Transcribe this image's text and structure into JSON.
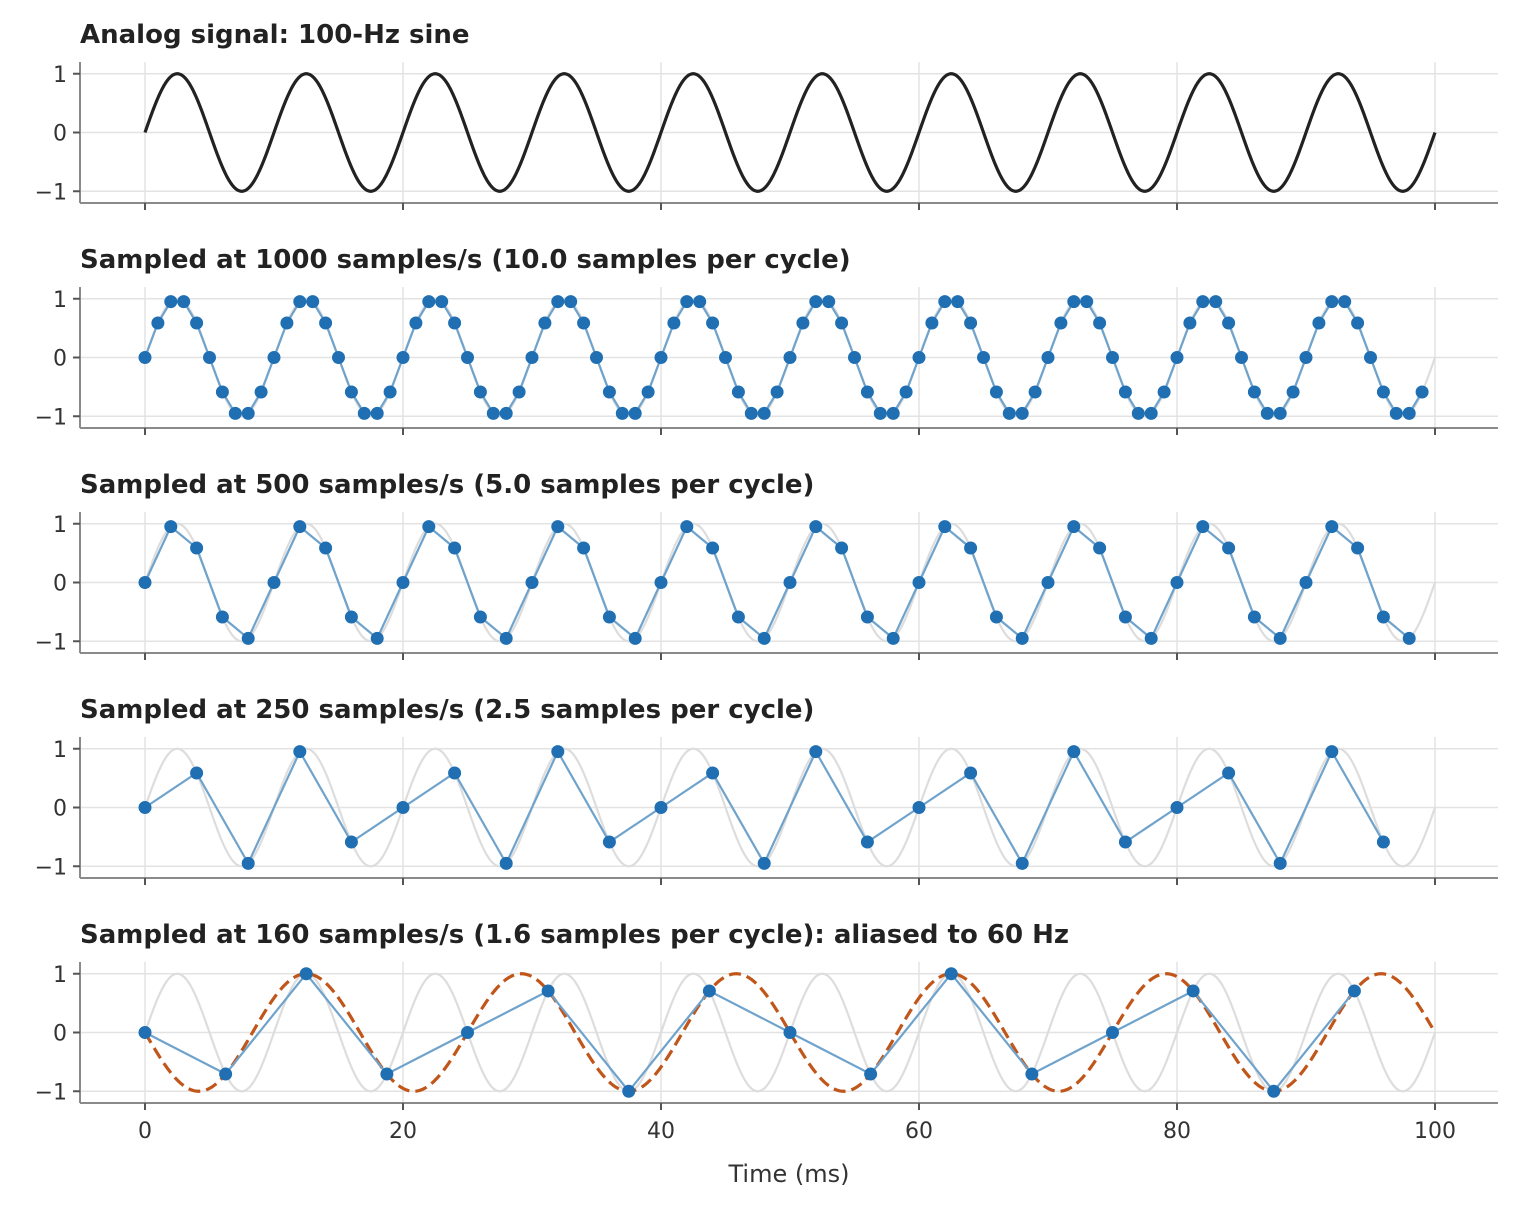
{
  "chart_data": {
    "type": "line",
    "xlabel": "Time (ms)",
    "xlim": [
      0,
      100
    ],
    "xticks": [
      0,
      20,
      40,
      60,
      80,
      100
    ],
    "ylim": [
      -1.2,
      1.2
    ],
    "yticks": [
      1,
      0,
      -1
    ],
    "ytick_labels": [
      "1",
      "0",
      "−1"
    ],
    "grid": true,
    "signal": {
      "frequency_hz": 100,
      "amplitude": 1
    },
    "colors": {
      "analog": "#222222",
      "reference": "#dddddd",
      "samples": "#1f6fb2",
      "sample_line": "#6fa3cc",
      "alias": "#c0561a"
    },
    "panels": [
      {
        "title": "Analog signal: 100-Hz sine",
        "kind": "analog"
      },
      {
        "title": "Sampled at 1000 samples/s  (10.0 samples per cycle)",
        "kind": "sampled",
        "sample_rate": 1000
      },
      {
        "title": "Sampled at 500 samples/s  (5.0 samples per cycle)",
        "kind": "sampled",
        "sample_rate": 500
      },
      {
        "title": "Sampled at 250 samples/s  (2.5 samples per cycle)",
        "kind": "sampled",
        "sample_rate": 250
      },
      {
        "title": "Sampled at 160 samples/s  (1.6 samples per cycle): aliased to 60 Hz",
        "kind": "sampled",
        "sample_rate": 160,
        "alias_hz": 60,
        "alias_sign": -1
      }
    ]
  }
}
